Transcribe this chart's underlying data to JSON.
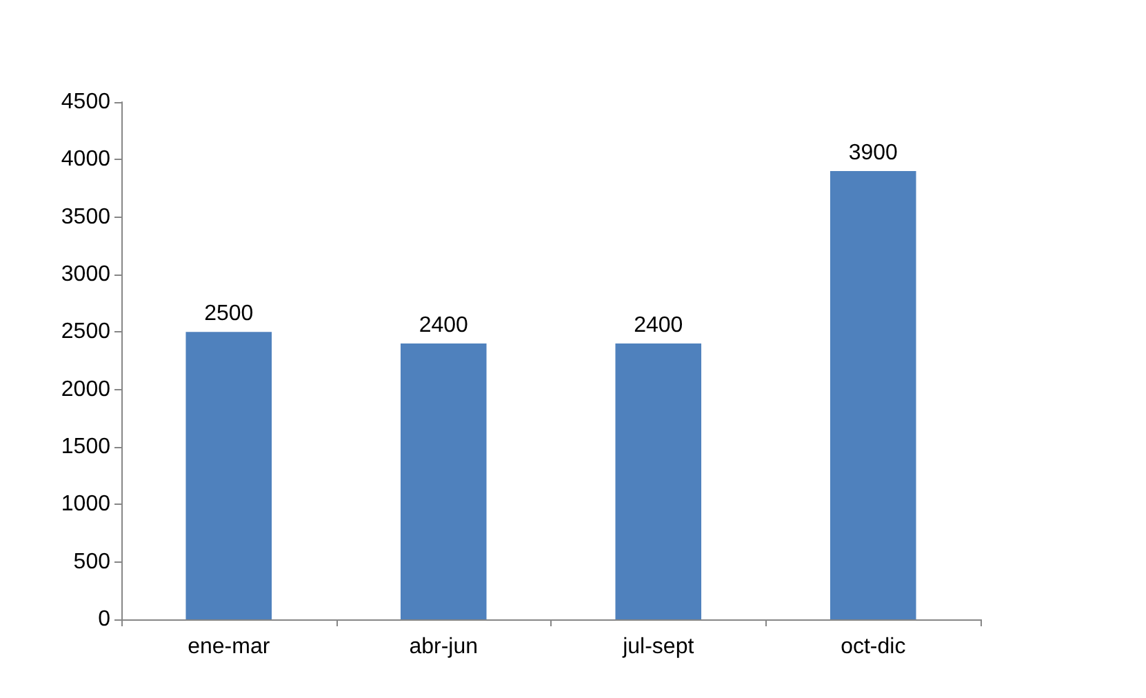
{
  "chart_data": {
    "type": "bar",
    "categories": [
      "ene-mar",
      "abr-jun",
      "jul-sept",
      "oct-dic"
    ],
    "series": [
      {
        "color": "#4f81bd",
        "values": [
          2500,
          2400,
          2400,
          3900
        ]
      }
    ],
    "ylim": [
      0,
      4500
    ],
    "yticks": [
      0,
      500,
      1000,
      1500,
      2000,
      2500,
      3000,
      3500,
      4000,
      4500
    ],
    "grid": false,
    "data_labels": true
  }
}
